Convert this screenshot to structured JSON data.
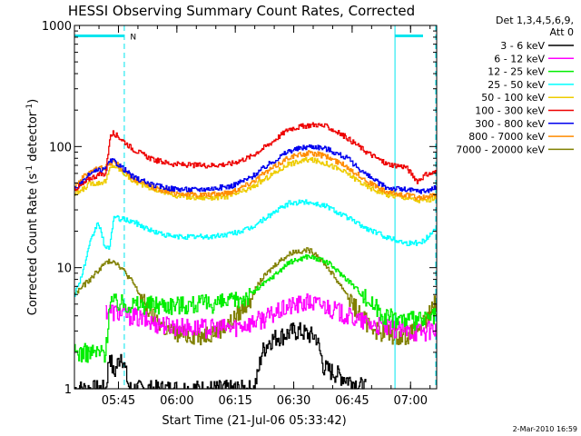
{
  "chart_data": {
    "type": "line",
    "title": "HESSI Observing Summary Count Rates, Corrected",
    "xlabel": "Start Time (21-Jul-06 05:33:42)",
    "ylabel_main": "Corrected Count Rate (s",
    "ylabel_sup1": "-1",
    "ylabel_mid": " detector",
    "ylabel_sup2": "-1",
    "ylabel_end": ")",
    "timestamp": "2-Mar-2010 16:59",
    "legend_header": [
      "Det 1,3,4,5,6,9,",
      "Att 0"
    ],
    "y_scale": "log",
    "ylim": [
      1,
      1000
    ],
    "xlim_minutes": [
      0,
      93
    ],
    "x_ticks": [
      {
        "label": "05:45",
        "minutes": 11.3
      },
      {
        "label": "06:00",
        "minutes": 26.3
      },
      {
        "label": "06:15",
        "minutes": 41.3
      },
      {
        "label": "06:30",
        "minutes": 56.3
      },
      {
        "label": "06:45",
        "minutes": 71.3
      },
      {
        "label": "07:00",
        "minutes": 86.3
      }
    ],
    "y_ticks": [
      {
        "label": "1",
        "value": 1
      },
      {
        "label": "10",
        "value": 10
      },
      {
        "label": "100",
        "value": 100
      },
      {
        "label": "1000",
        "value": 1000
      }
    ],
    "night_markers_minutes": [
      12.8,
      82.3,
      95.1
    ],
    "night_bar_segments_minutes": [
      [
        0,
        12.8
      ],
      [
        82.3,
        95.1
      ]
    ],
    "annotation": {
      "text": "N",
      "minutes": 14.3,
      "value": 820
    },
    "series": [
      {
        "name": "3 - 6 keV",
        "color": "#000000",
        "x": [
          0,
          8,
          9,
          10,
          12,
          14,
          15,
          16,
          17,
          46,
          47,
          48,
          50,
          52,
          54,
          56,
          58,
          60,
          62,
          63,
          64,
          75
        ],
        "y": [
          1,
          1,
          2,
          1.3,
          2,
          1,
          1,
          1,
          1,
          1,
          1.3,
          2,
          2.5,
          2.7,
          2.8,
          3,
          3,
          2.8,
          2.7,
          2,
          1.5,
          1
        ]
      },
      {
        "name": "6 - 12 keV",
        "color": "#ff00ff",
        "x": [
          8,
          15,
          20,
          30,
          40,
          45,
          50,
          55,
          60,
          65,
          70,
          75,
          80,
          85,
          90,
          93
        ],
        "y": [
          4.5,
          4,
          3.5,
          3.2,
          3.2,
          3.5,
          4,
          4.8,
          5.2,
          4.8,
          4,
          3.5,
          3.2,
          3,
          3,
          3.2
        ]
      },
      {
        "name": "12 - 25 keV",
        "color": "#00ee00",
        "x": [
          0,
          8,
          9,
          10,
          15,
          20,
          30,
          40,
          45,
          50,
          55,
          60,
          65,
          70,
          75,
          80,
          85,
          88,
          90,
          93
        ],
        "y": [
          2,
          2,
          5.5,
          5.2,
          5,
          5,
          5,
          5.2,
          6,
          8,
          11,
          12.5,
          11,
          8,
          5.5,
          4,
          3.7,
          3.7,
          3.7,
          4
        ]
      },
      {
        "name": "25 - 50 keV",
        "color": "#00ffff",
        "x": [
          0,
          2,
          4,
          6,
          8,
          9,
          10,
          15,
          20,
          25,
          30,
          35,
          40,
          45,
          50,
          55,
          60,
          65,
          70,
          75,
          80,
          85,
          88,
          90,
          92,
          93
        ],
        "y": [
          6,
          9,
          16,
          24,
          14,
          15,
          26,
          24,
          20,
          18,
          18,
          18,
          19,
          21,
          27,
          34,
          35,
          32,
          26,
          21,
          18,
          16,
          16,
          17,
          20,
          22
        ]
      },
      {
        "name": "50 - 100 keV",
        "color": "#eecc00",
        "x": [
          0,
          2,
          4,
          6,
          8,
          9,
          10,
          12,
          15,
          20,
          25,
          30,
          35,
          40,
          45,
          50,
          55,
          60,
          62,
          65,
          70,
          75,
          80,
          85,
          88,
          90,
          93
        ],
        "y": [
          40,
          44,
          50,
          50,
          52,
          65,
          70,
          63,
          52,
          45,
          40,
          38,
          38,
          39,
          45,
          57,
          72,
          78,
          76,
          72,
          60,
          47,
          40,
          38,
          36,
          36,
          38
        ]
      },
      {
        "name": "100 - 300 keV",
        "color": "#ee0000",
        "x": [
          0,
          2,
          4,
          6,
          8,
          9,
          10,
          12,
          15,
          20,
          25,
          30,
          35,
          40,
          45,
          50,
          55,
          60,
          62,
          65,
          70,
          75,
          80,
          85,
          88,
          90,
          93
        ],
        "y": [
          45,
          48,
          55,
          58,
          60,
          118,
          130,
          115,
          95,
          78,
          72,
          70,
          70,
          72,
          82,
          105,
          140,
          150,
          152,
          145,
          118,
          90,
          72,
          68,
          52,
          58,
          62
        ]
      },
      {
        "name": "300 - 800 keV",
        "color": "#0000ee",
        "x": [
          0,
          2,
          4,
          6,
          8,
          9,
          10,
          12,
          15,
          20,
          25,
          30,
          35,
          40,
          45,
          50,
          55,
          60,
          62,
          65,
          70,
          75,
          80,
          85,
          88,
          90,
          93
        ],
        "y": [
          45,
          50,
          60,
          63,
          65,
          75,
          76,
          68,
          56,
          48,
          45,
          44,
          45,
          47,
          55,
          72,
          92,
          100,
          100,
          95,
          80,
          58,
          46,
          44,
          43,
          43,
          46
        ]
      },
      {
        "name": "800 - 7000 keV",
        "color": "#ff8c00",
        "x": [
          0,
          2,
          4,
          6,
          8,
          9,
          10,
          12,
          15,
          20,
          25,
          30,
          35,
          40,
          45,
          50,
          55,
          60,
          62,
          65,
          70,
          75,
          80,
          85,
          88,
          90,
          93
        ],
        "y": [
          48,
          55,
          63,
          66,
          68,
          72,
          76,
          66,
          54,
          46,
          42,
          40,
          40,
          42,
          50,
          64,
          82,
          88,
          87,
          82,
          68,
          52,
          42,
          40,
          38,
          38,
          40
        ]
      },
      {
        "name": "7000 - 20000 keV",
        "color": "#808000",
        "x": [
          0,
          2,
          4,
          6,
          8,
          10,
          12,
          15,
          18,
          20,
          24,
          28,
          32,
          36,
          40,
          44,
          48,
          52,
          56,
          60,
          62,
          64,
          66,
          70,
          74,
          78,
          82,
          86,
          90,
          93
        ],
        "y": [
          6,
          7,
          8,
          9.5,
          11,
          11.5,
          10,
          7.5,
          5,
          4,
          3,
          2.8,
          2.8,
          3,
          3.5,
          5,
          8,
          11,
          13.5,
          14,
          13,
          11,
          9,
          6,
          3.8,
          3,
          2.8,
          2.8,
          3.5,
          5.5
        ]
      }
    ]
  }
}
